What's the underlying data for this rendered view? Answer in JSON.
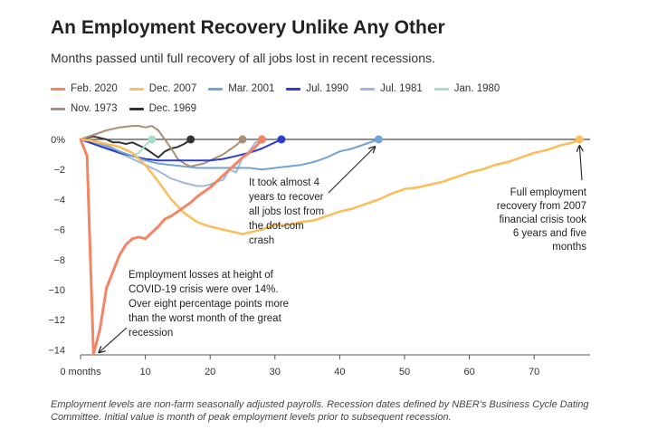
{
  "title": "An Employment Recovery Unlike Any Other",
  "subtitle": "Months passed until full recovery of all jobs lost in recent recessions.",
  "footer": "Employment levels are non-farm seasonally adjusted payrolls. Recession dates defined by NBER's Business Cycle Dating Committee. Initial value is month of peak employment levels prior to subsequent recession.",
  "chart_data": {
    "type": "line",
    "title": "An Employment Recovery Unlike Any Other",
    "subtitle": "Months passed until full recovery of all jobs lost in recent recessions.",
    "xlabel": "",
    "ylabel": "",
    "xlim": [
      0,
      78
    ],
    "ylim": [
      -14.5,
      0.5
    ],
    "x_ticks": [
      0,
      10,
      20,
      30,
      40,
      50,
      60,
      70
    ],
    "x_tick_labels": [
      "0 months",
      "10",
      "20",
      "30",
      "40",
      "50",
      "60",
      "70"
    ],
    "y_ticks": [
      0,
      -2,
      -4,
      -6,
      -8,
      -10,
      -12,
      -14
    ],
    "y_tick_labels": [
      "0%",
      "−2",
      "−4",
      "−6",
      "−8",
      "−10",
      "−12",
      "−14"
    ],
    "grid": false,
    "legend_position": "top",
    "series": [
      {
        "name": "Feb. 2020",
        "color": "#f48463",
        "x": [
          0,
          1,
          2,
          3,
          4,
          5,
          6,
          7,
          8,
          9,
          10,
          11,
          12,
          13,
          14,
          15,
          16,
          17,
          18,
          19,
          20,
          21,
          22,
          23,
          24,
          25,
          26,
          27,
          28
        ],
        "y": [
          0,
          -1.1,
          -14.3,
          -12.6,
          -9.9,
          -8.8,
          -7.7,
          -7.0,
          -6.6,
          -6.5,
          -6.6,
          -6.2,
          -5.8,
          -5.3,
          -5.1,
          -4.8,
          -4.5,
          -4.2,
          -3.8,
          -3.5,
          -3.2,
          -2.8,
          -2.4,
          -2.0,
          -1.6,
          -1.2,
          -0.9,
          -0.5,
          0.0
        ]
      },
      {
        "name": "Dec. 2007",
        "color": "#fbbe5c",
        "x": [
          0,
          2,
          4,
          6,
          8,
          10,
          12,
          14,
          16,
          18,
          20,
          22,
          24,
          25,
          26,
          28,
          30,
          32,
          34,
          36,
          38,
          40,
          42,
          44,
          46,
          48,
          50,
          52,
          54,
          56,
          58,
          60,
          62,
          64,
          66,
          68,
          70,
          72,
          74,
          76,
          77
        ],
        "y": [
          0,
          -0.1,
          -0.3,
          -0.5,
          -0.9,
          -1.7,
          -2.8,
          -4.0,
          -4.9,
          -5.5,
          -5.8,
          -6.0,
          -6.2,
          -6.3,
          -6.2,
          -6.0,
          -5.7,
          -5.7,
          -5.5,
          -5.4,
          -5.1,
          -4.8,
          -4.6,
          -4.3,
          -4.0,
          -3.6,
          -3.3,
          -3.2,
          -3.0,
          -2.8,
          -2.5,
          -2.2,
          -2.0,
          -1.7,
          -1.5,
          -1.2,
          -0.9,
          -0.7,
          -0.4,
          -0.2,
          0.0
        ]
      },
      {
        "name": "Mar. 2001",
        "color": "#6fa4d6",
        "x": [
          0,
          2,
          4,
          6,
          8,
          10,
          12,
          14,
          16,
          18,
          20,
          22,
          24,
          26,
          28,
          30,
          32,
          34,
          36,
          38,
          40,
          42,
          44,
          46
        ],
        "y": [
          0,
          -0.1,
          -0.4,
          -0.8,
          -1.1,
          -1.4,
          -1.6,
          -1.7,
          -1.8,
          -1.9,
          -1.9,
          -1.9,
          -1.9,
          -1.9,
          -2.0,
          -1.9,
          -1.8,
          -1.7,
          -1.5,
          -1.2,
          -0.8,
          -0.6,
          -0.3,
          0.0
        ]
      },
      {
        "name": "Jul. 1990",
        "color": "#2b3ed1",
        "x": [
          0,
          2,
          4,
          6,
          8,
          10,
          12,
          14,
          16,
          18,
          20,
          22,
          24,
          26,
          28,
          30,
          31
        ],
        "y": [
          0,
          -0.3,
          -0.6,
          -0.9,
          -1.1,
          -1.3,
          -1.4,
          -1.4,
          -1.4,
          -1.4,
          -1.4,
          -1.3,
          -1.1,
          -0.9,
          -0.6,
          -0.2,
          0.0
        ]
      },
      {
        "name": "Jul. 1981",
        "color": "#9fb8d9",
        "x": [
          0,
          2,
          4,
          6,
          8,
          10,
          12,
          14,
          16,
          18,
          19,
          20,
          21,
          22,
          23,
          24,
          25,
          26,
          27,
          28
        ],
        "y": [
          0,
          -0.2,
          -0.5,
          -0.9,
          -1.3,
          -1.7,
          -2.1,
          -2.6,
          -2.9,
          -3.1,
          -3.1,
          -3.0,
          -2.8,
          -2.7,
          -2.0,
          -2.2,
          -1.2,
          -0.8,
          -0.2,
          0.0
        ]
      },
      {
        "name": "Jan. 1980",
        "color": "#a8dcc6",
        "x": [
          0,
          2,
          4,
          6,
          8,
          9,
          10,
          11
        ],
        "y": [
          0,
          -0.2,
          -0.4,
          -0.8,
          -1.1,
          -0.9,
          -0.4,
          0.0
        ]
      },
      {
        "name": "Nov. 1973",
        "color": "#ab8f75",
        "x": [
          0,
          2,
          4,
          6,
          8,
          9,
          10,
          11,
          12,
          14,
          15,
          16,
          17,
          18,
          19,
          20,
          22,
          24,
          25
        ],
        "y": [
          0,
          0.3,
          0.6,
          0.8,
          0.9,
          0.9,
          0.8,
          0.9,
          0.6,
          -0.6,
          -1.3,
          -1.6,
          -1.8,
          -1.7,
          -1.6,
          -1.4,
          -1.0,
          -0.4,
          0.0
        ]
      },
      {
        "name": "Dec. 1969",
        "color": "#333333",
        "x": [
          0,
          2,
          4,
          5,
          6,
          7,
          8,
          9,
          10,
          11,
          12,
          13,
          14,
          15,
          16,
          17
        ],
        "y": [
          0,
          0.2,
          0.0,
          -0.2,
          -0.2,
          -0.3,
          -0.2,
          -0.4,
          -0.6,
          -0.9,
          -1.2,
          -0.8,
          -0.6,
          -0.5,
          -0.3,
          0.0
        ]
      }
    ],
    "annotations": [
      {
        "id": "covid",
        "lines": [
          "Employment losses at height of",
          "COVID-19 crisis were over 14%.",
          "Over eight percentage points more",
          "than the worst month of the great",
          "recession"
        ],
        "point_x": 2,
        "point_y": -14.3
      },
      {
        "id": "dotcom",
        "lines": [
          "It took almost 4",
          "years to recover",
          "all jobs lost from",
          "the dot-com",
          "crash"
        ],
        "point_x": 46,
        "point_y": 0.0
      },
      {
        "id": "financial",
        "lines": [
          "Full employment",
          "recovery from 2007",
          "financial crisis took",
          "6 years and five",
          "months"
        ],
        "point_x": 77,
        "point_y": 0.0
      }
    ]
  }
}
